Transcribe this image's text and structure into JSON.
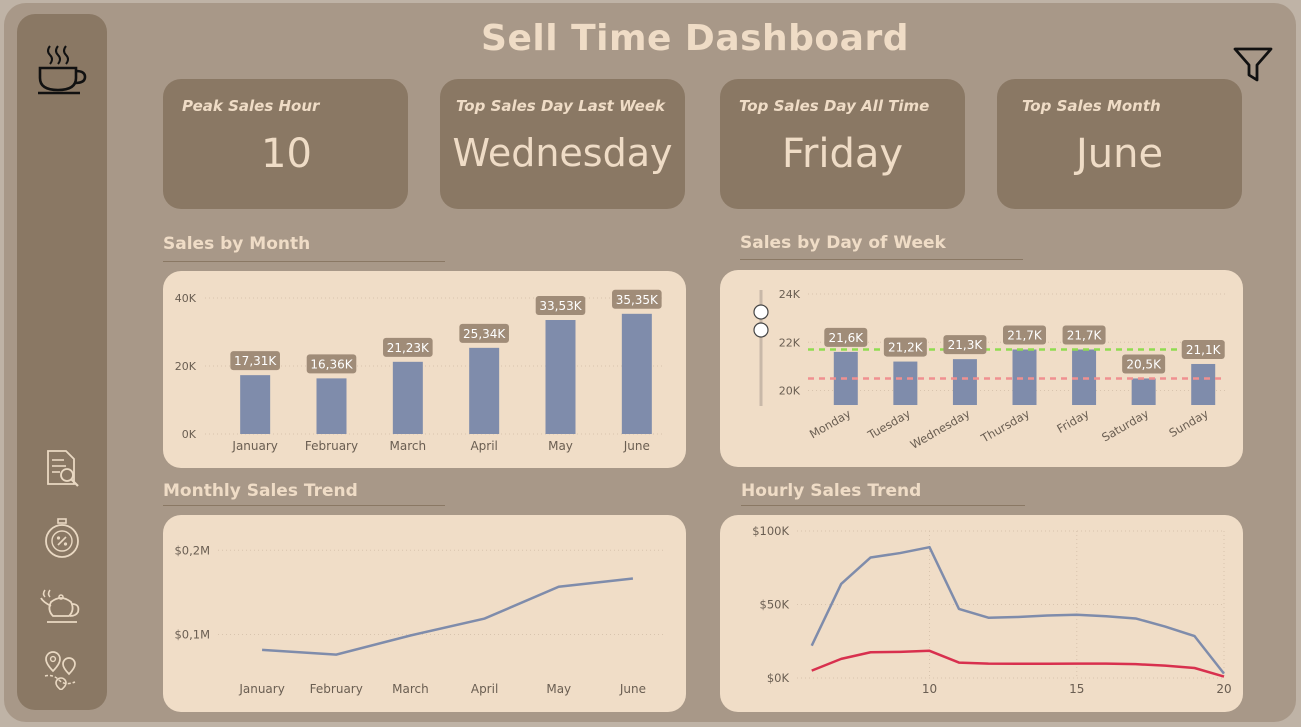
{
  "header": {
    "title": "Sell Time Dashboard"
  },
  "sidebar": {
    "icons": [
      "coffee-cup-icon",
      "report-search-icon",
      "discount-timer-icon",
      "teapot-icon",
      "map-pins-icon"
    ]
  },
  "toolbar": {
    "filter_icon": "filter-icon"
  },
  "kpis": [
    {
      "label": "Peak Sales Hour",
      "value": "10"
    },
    {
      "label": "Top Sales Day Last Week",
      "value": "Wednesday"
    },
    {
      "label": "Top Sales Day All Time",
      "value": "Friday"
    },
    {
      "label": "Top Sales Month",
      "value": "June"
    }
  ],
  "sections": {
    "month": "Sales by Month",
    "dow": "Sales by Day of Week",
    "monthly_trend": "Monthly Sales Trend",
    "hourly_trend": "Hourly Sales Trend"
  },
  "colors": {
    "background": "#a89888",
    "sidebar": "#8a7864",
    "panel": "#f0ddc7",
    "text_light": "#efdcc6",
    "bar": "#7f8cab",
    "label_bg": "#a08c78",
    "axis_text": "#6a5e52",
    "reference_green": "#90dc50",
    "reference_red": "#f09090",
    "hourly_red": "#d8304e"
  },
  "chart_data": [
    {
      "id": "sales_by_month",
      "type": "bar",
      "title": "Sales by Month",
      "categories": [
        "January",
        "February",
        "March",
        "April",
        "May",
        "June"
      ],
      "values": [
        17310,
        16360,
        21230,
        25340,
        33530,
        35350
      ],
      "data_labels": [
        "17,31K",
        "16,36K",
        "21,23K",
        "25,34K",
        "33,53K",
        "35,35K"
      ],
      "ylim": [
        0,
        40000
      ],
      "yticks": [
        0,
        20000,
        40000
      ],
      "ytick_labels": [
        "0K",
        "20K",
        "40K"
      ],
      "grid": true
    },
    {
      "id": "sales_by_day_of_week",
      "type": "bar",
      "title": "Sales by Day of Week",
      "categories": [
        "Monday",
        "Tuesday",
        "Wednesday",
        "Thursday",
        "Friday",
        "Saturday",
        "Sunday"
      ],
      "values": [
        21600,
        21200,
        21300,
        21700,
        21700,
        20500,
        21100
      ],
      "data_labels": [
        "21,6K",
        "21,2K",
        "21,3K",
        "21,7K",
        "21,7K",
        "20,5K",
        "21,1K"
      ],
      "ylim": [
        19400,
        24000
      ],
      "yticks": [
        20000,
        22000,
        24000
      ],
      "ytick_labels": [
        "20K",
        "22K",
        "24K"
      ],
      "reference_lines": [
        {
          "value": 21700,
          "color": "#90dc50",
          "style": "dashed"
        },
        {
          "value": 20500,
          "color": "#f09090",
          "style": "dashed"
        }
      ],
      "grid": true
    },
    {
      "id": "monthly_sales_trend",
      "type": "line",
      "title": "Monthly Sales Trend",
      "categories": [
        "January",
        "February",
        "March",
        "April",
        "May",
        "June"
      ],
      "values": [
        81700,
        76100,
        98800,
        118900,
        156700,
        166500
      ],
      "ylim": [
        40000,
        230000
      ],
      "yticks": [
        100000,
        200000
      ],
      "ytick_labels": [
        "$0,1M",
        "$0,2M"
      ],
      "grid": true
    },
    {
      "id": "hourly_sales_trend",
      "type": "line",
      "title": "Hourly Sales Trend",
      "x": [
        6,
        7,
        8,
        9,
        10,
        11,
        12,
        13,
        14,
        15,
        16,
        17,
        18,
        19,
        20
      ],
      "series": [
        {
          "values": [
            22000,
            64000,
            82000,
            85000,
            89000,
            47000,
            41000,
            41500,
            42500,
            43000,
            42000,
            40500,
            35000,
            28500,
            3000
          ]
        },
        {
          "values": [
            5000,
            13000,
            17500,
            17800,
            18500,
            10500,
            9800,
            9700,
            9700,
            9800,
            9800,
            9400,
            8400,
            6800,
            1000
          ]
        }
      ],
      "xlim": [
        5.5,
        20
      ],
      "xticks": [
        10,
        15,
        20
      ],
      "ylim": [
        0,
        100000
      ],
      "yticks": [
        0,
        50000,
        100000
      ],
      "ytick_labels": [
        "$0K",
        "$50K",
        "$100K"
      ],
      "grid": true
    }
  ]
}
